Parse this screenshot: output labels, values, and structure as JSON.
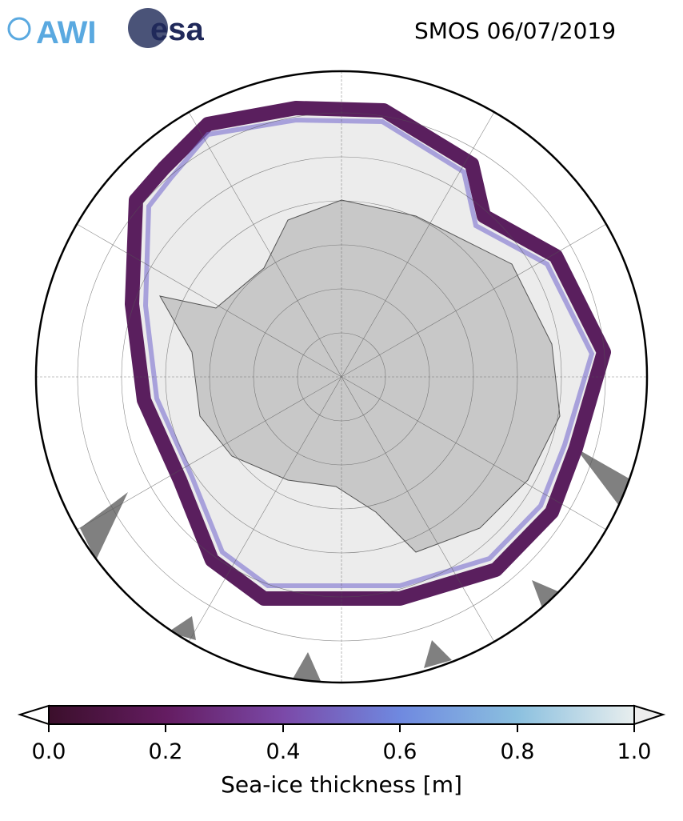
{
  "title": "SMOS 06/07/2019",
  "logos": [
    "AWI",
    "esa"
  ],
  "map": {
    "projection": "south-polar-stereographic",
    "land_color": "#c8c8c8",
    "ice_interior_color": "#ececec",
    "ice_edge_color": "#5a1f5e",
    "grid": true
  },
  "colorbar": {
    "label": "Sea-ice thickness [m]",
    "min": 0.0,
    "max": 1.0,
    "extend": "both",
    "ticks": [
      "0.0",
      "0.2",
      "0.4",
      "0.6",
      "0.8",
      "1.0"
    ],
    "colors": [
      "#3b0f2b",
      "#641c61",
      "#7b49a8",
      "#6f89e0",
      "#8bc0df",
      "#e8eeee"
    ]
  }
}
